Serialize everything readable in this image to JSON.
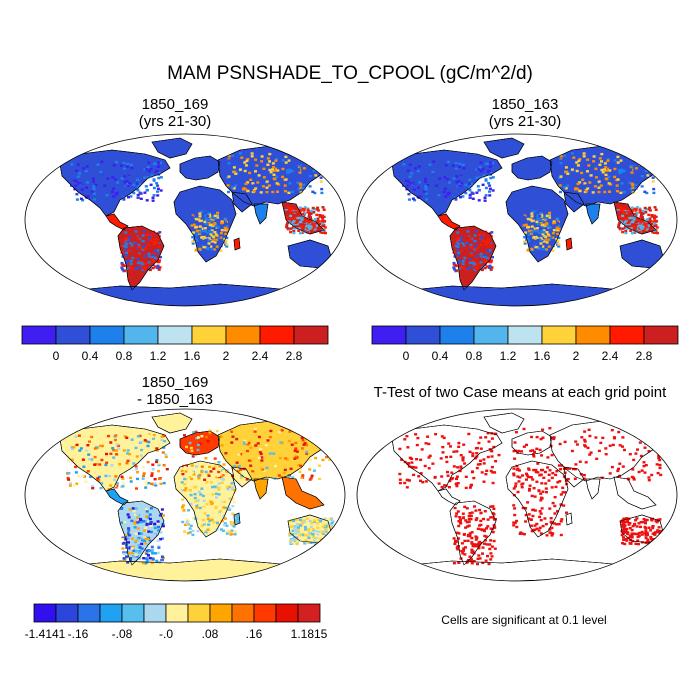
{
  "chart_data": {
    "type": "map",
    "title": "MAM PSNSHADE_TO_CPOOL (gC/m^2/d)",
    "panels": [
      {
        "id": "p1",
        "title_line1": "1850_169",
        "title_line2": "(yrs 21-30)",
        "kind": "field",
        "palette": "abs"
      },
      {
        "id": "p2",
        "title_line1": "1850_163",
        "title_line2": "(yrs 21-30)",
        "kind": "field",
        "palette": "abs"
      },
      {
        "id": "p3",
        "title_line1": "1850_169",
        "title_line2": "- 1850_163",
        "kind": "diff",
        "palette": "diff"
      },
      {
        "id": "p4",
        "title_line1": "T-Test of two Case means at each grid point",
        "title_line2": "",
        "kind": "ttest",
        "palette": "sig"
      }
    ],
    "colorbar_abs": {
      "colors": [
        "#3e1ef0",
        "#2f4fd6",
        "#1e80ea",
        "#52b6ec",
        "#bde3f0",
        "#ffd23a",
        "#ff8c00",
        "#ff1a00",
        "#cc2020"
      ],
      "labels": [
        "0",
        "0.4",
        "0.8",
        "1.2",
        "1.6",
        "2",
        "2.4",
        "2.8"
      ]
    },
    "colorbar_diff": {
      "colors": [
        "#3010ef",
        "#2c45dc",
        "#2a73e8",
        "#1fa2f2",
        "#56bfee",
        "#a9d8ef",
        "#fff29a",
        "#ffd23a",
        "#ffa500",
        "#ff7200",
        "#ff3a00",
        "#e81000",
        "#d42020"
      ],
      "labels": [
        "-1.4141",
        "-.16",
        "-.08",
        "-.0",
        ".08",
        ".16",
        "1.1815"
      ]
    },
    "sig_color": "#ee1010",
    "sig_note": "Cells are significant at 0.1 level"
  }
}
